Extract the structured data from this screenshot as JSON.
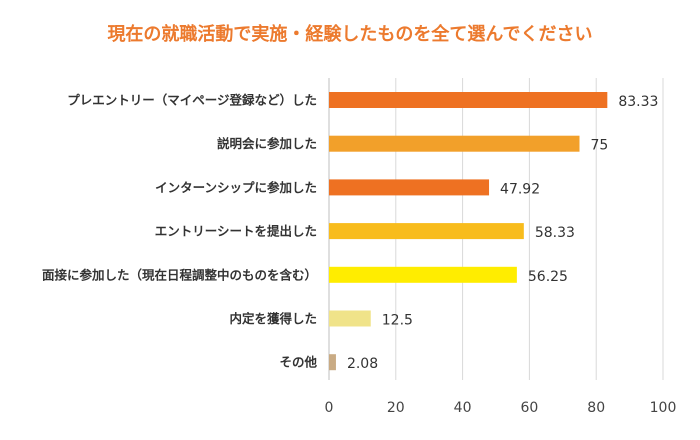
{
  "chart_data": {
    "type": "bar",
    "orientation": "horizontal",
    "title": "現在の就職活動で実施・経験したものを全て選んでください",
    "xlabel": "",
    "ylabel": "",
    "categories": [
      "プレエントリー（マイページ登録など）した",
      "説明会に参加した",
      "インターンシップに参加した",
      "エントリーシートを提出した",
      "面接に参加した（現在日程調整中のものを含む）",
      "内定を獲得した",
      "その他"
    ],
    "values": [
      83.33,
      75,
      47.92,
      58.33,
      56.25,
      12.5,
      2.08
    ],
    "value_labels": [
      "83.33",
      "75",
      "47.92",
      "58.33",
      "56.25",
      "12.5",
      "2.08"
    ],
    "bar_colors": [
      "#ee7122",
      "#f2a02a",
      "#ee7122",
      "#f8bc1c",
      "#ffed00",
      "#f0e389",
      "#c9ab84"
    ],
    "xlim": [
      0,
      100
    ],
    "xticks": [
      0,
      20,
      40,
      60,
      80,
      100
    ],
    "grid": "vertical",
    "legend": "none"
  },
  "colors": {
    "title": "#ec7a2e",
    "grid": "#d9d9d9",
    "axis": "#bfbfbf"
  }
}
